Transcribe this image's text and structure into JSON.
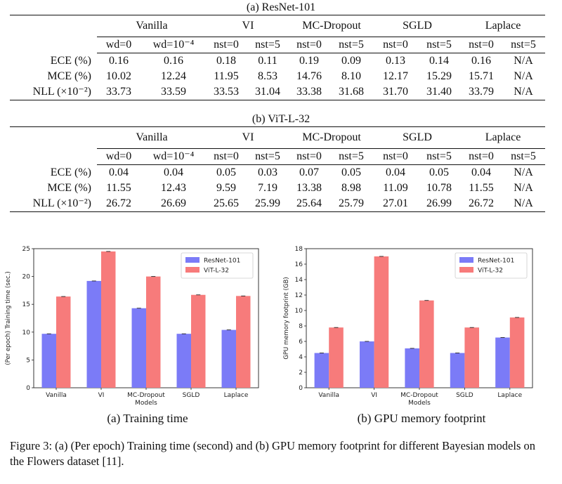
{
  "table_a": {
    "caption": "(a) ResNet-101",
    "groups": [
      "Vanilla",
      "VI",
      "MC-Dropout",
      "SGLD",
      "Laplace"
    ],
    "subheaders": [
      "wd=0",
      "wd=10⁻⁴",
      "nst=0",
      "nst=5",
      "nst=0",
      "nst=5",
      "nst=0",
      "nst=5",
      "nst=0",
      "nst=5"
    ],
    "rows": [
      {
        "label": "ECE (%)",
        "values": [
          "0.16",
          "0.16",
          "0.18",
          "0.11",
          "0.19",
          "0.09",
          "0.13",
          "0.14",
          "0.16",
          "N/A"
        ]
      },
      {
        "label": "MCE (%)",
        "values": [
          "10.02",
          "12.24",
          "11.95",
          "8.53",
          "14.76",
          "8.10",
          "12.17",
          "15.29",
          "15.71",
          "N/A"
        ]
      },
      {
        "label": "NLL (×10⁻²)",
        "values": [
          "33.73",
          "33.59",
          "33.53",
          "31.04",
          "33.38",
          "31.68",
          "31.70",
          "31.40",
          "33.79",
          "N/A"
        ]
      }
    ]
  },
  "table_b": {
    "caption": "(b) ViT-L-32",
    "groups": [
      "Vanilla",
      "VI",
      "MC-Dropout",
      "SGLD",
      "Laplace"
    ],
    "subheaders": [
      "wd=0",
      "wd=10⁻⁴",
      "nst=0",
      "nst=5",
      "nst=0",
      "nst=5",
      "nst=0",
      "nst=5",
      "nst=0",
      "nst=5"
    ],
    "rows": [
      {
        "label": "ECE (%)",
        "values": [
          "0.04",
          "0.04",
          "0.05",
          "0.03",
          "0.07",
          "0.05",
          "0.04",
          "0.05",
          "0.04",
          "N/A"
        ]
      },
      {
        "label": "MCE (%)",
        "values": [
          "11.55",
          "12.43",
          "9.59",
          "7.19",
          "13.38",
          "8.98",
          "11.09",
          "10.78",
          "11.55",
          "N/A"
        ]
      },
      {
        "label": "NLL (×10⁻²)",
        "values": [
          "26.72",
          "26.69",
          "25.65",
          "25.99",
          "25.64",
          "25.79",
          "27.01",
          "26.99",
          "26.72",
          "N/A"
        ]
      }
    ]
  },
  "chart_data": [
    {
      "type": "bar",
      "title": "",
      "xlabel": "Models",
      "ylabel": "(Per epoch) Training time (sec.)",
      "categories": [
        "Vanilla",
        "VI",
        "MC-Dropout",
        "SGLD",
        "Laplace"
      ],
      "ylim": [
        0,
        25
      ],
      "yticks": [
        0,
        5,
        10,
        15,
        20,
        25
      ],
      "legend_position": "top-right",
      "series": [
        {
          "name": "ResNet-101",
          "color": "#7b7bf7",
          "values": [
            9.7,
            19.2,
            14.3,
            9.7,
            10.4
          ]
        },
        {
          "name": "ViT-L-32",
          "color": "#f77b7b",
          "values": [
            16.4,
            24.5,
            20.0,
            16.7,
            16.5
          ]
        }
      ]
    },
    {
      "type": "bar",
      "title": "",
      "xlabel": "Models",
      "ylabel": "GPU memory footprint (GB)",
      "categories": [
        "Vanilla",
        "VI",
        "MC-Dropout",
        "SGLD",
        "Laplace"
      ],
      "ylim": [
        0,
        18
      ],
      "yticks": [
        0,
        2,
        4,
        6,
        8,
        10,
        12,
        14,
        16,
        18
      ],
      "legend_position": "top-right",
      "series": [
        {
          "name": "ResNet-101",
          "color": "#7b7bf7",
          "values": [
            4.5,
            6.0,
            5.1,
            4.5,
            6.5
          ]
        },
        {
          "name": "ViT-L-32",
          "color": "#f77b7b",
          "values": [
            7.8,
            17.0,
            11.3,
            7.8,
            9.1
          ]
        }
      ]
    }
  ],
  "subcaptions": [
    "(a) Training time",
    "(b) GPU memory footprint"
  ],
  "figure_caption": "Figure 3: (a) (Per epoch) Training time (second) and (b) GPU memory footprint for different Bayesian models on the Flowers dataset [11]."
}
